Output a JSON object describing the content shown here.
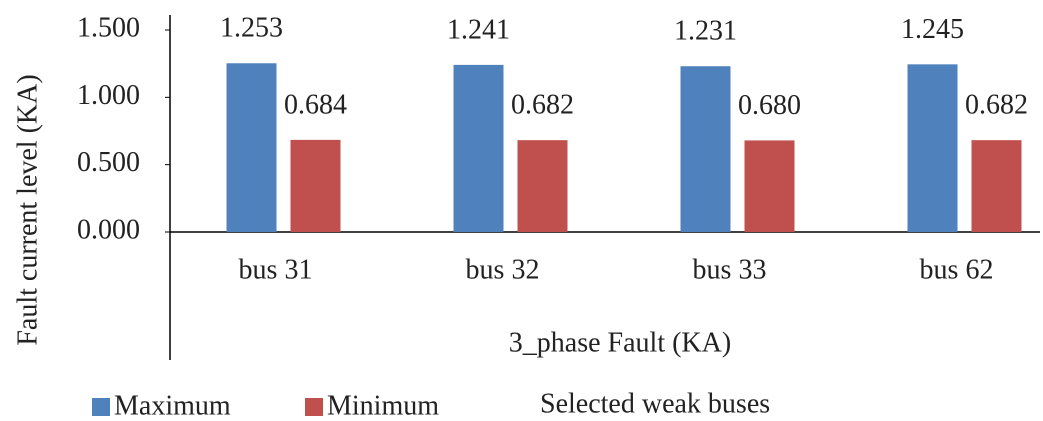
{
  "chart_data": {
    "type": "bar",
    "y_label": "Fault current level (KA)",
    "x_label": "3_phase Fault (KA)",
    "x_title": "Selected weak buses",
    "categories": [
      "bus 31",
      "bus 32",
      "bus 33",
      "bus 62"
    ],
    "series": [
      {
        "name": "Maximum",
        "color": "#4f81bd",
        "values": [
          1.253,
          1.241,
          1.231,
          1.245
        ],
        "value_labels": [
          "1.253",
          "1.241",
          "1.231",
          "1.245"
        ]
      },
      {
        "name": "Minimum",
        "color": "#c0504d",
        "values": [
          0.684,
          0.682,
          0.68,
          0.682
        ],
        "value_labels": [
          "0.684",
          "0.682",
          "0.680",
          "0.682"
        ]
      }
    ],
    "ylim": [
      0,
      1.5
    ],
    "yticks": [
      {
        "value": 0,
        "label": "0.000"
      },
      {
        "value": 0.5,
        "label": "0.500"
      },
      {
        "value": 1,
        "label": "1.000"
      },
      {
        "value": 1.5,
        "label": "1.500"
      }
    ],
    "legend": "bottom"
  }
}
